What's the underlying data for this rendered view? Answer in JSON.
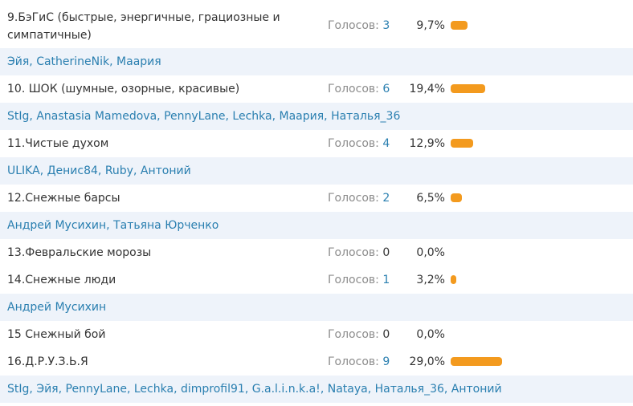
{
  "options": [
    {
      "id": "opt9",
      "name_line1": "9.БэГиС (быстрые, энергичные, грациозные и",
      "name_line2": "симпатичные)",
      "votes_label": "Голосов:",
      "votes": "3",
      "percent": "9,7%",
      "share": 0.097,
      "voters": [
        "Эйя",
        "CatherineNik",
        "Маария"
      ]
    },
    {
      "id": "opt10",
      "name": "10. ШОК (шумные, озорные, красивые)",
      "votes_label": "Голосов:",
      "votes": "6",
      "percent": "19,4%",
      "share": 0.194,
      "voters": [
        "StIg",
        "Anastasia Mamedova",
        "PennyLane",
        "Lechka",
        "Маария",
        "Наталья_36"
      ]
    },
    {
      "id": "opt11",
      "name": "11.Чистые духом",
      "votes_label": "Голосов:",
      "votes": "4",
      "percent": "12,9%",
      "share": 0.129,
      "voters": [
        "ULIKA",
        "Денис84",
        "Ruby",
        "Антоний"
      ]
    },
    {
      "id": "opt12",
      "name": "12.Снежные барсы",
      "votes_label": "Голосов:",
      "votes": "2",
      "percent": "6,5%",
      "share": 0.065,
      "voters": [
        "Андрей Мусихин",
        "Татьяна Юрченко"
      ]
    },
    {
      "id": "opt13",
      "name": "13.Февральские морозы",
      "votes_label": "Голосов:",
      "votes": "0",
      "percent": "0,0%",
      "share": 0,
      "voters": []
    },
    {
      "id": "opt14",
      "name": "14.Снежные люди",
      "votes_label": "Голосов:",
      "votes": "1",
      "percent": "3,2%",
      "share": 0.032,
      "voters": [
        "Андрей Мусихин"
      ]
    },
    {
      "id": "opt15",
      "name": "15 Снежный бой",
      "votes_label": "Голосов:",
      "votes": "0",
      "percent": "0,0%",
      "share": 0,
      "voters": []
    },
    {
      "id": "opt16",
      "name": "16.Д.Р.У.З.Ь.Я",
      "votes_label": "Голосов:",
      "votes": "9",
      "percent": "29,0%",
      "share": 0.29,
      "voters": [
        "StIg",
        "Эйя",
        "PennyLane",
        "Lechka",
        "dimprofil91",
        "G.a.l.i.n.k.a!",
        "Nataya",
        "Наталья_36",
        "Антоний"
      ]
    }
  ],
  "colors": {
    "bar": "#f39a1e",
    "link": "#2a7fb0",
    "voters_bg": "#eef3fa",
    "muted": "#8c8c8c"
  }
}
